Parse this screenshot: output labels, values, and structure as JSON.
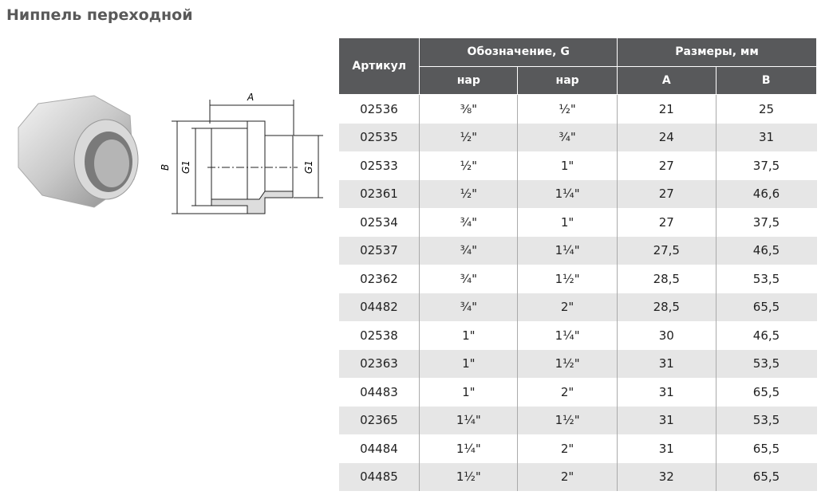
{
  "title": "Ниппель переходной",
  "drawing": {
    "label_a": "A",
    "label_b": "B",
    "label_g1": "G1"
  },
  "table": {
    "header_article": "Артикул",
    "header_designation": "Обозначение, G",
    "header_sizes": "Размеры, мм",
    "sub_headers": [
      "нар",
      "нар",
      "A",
      "B"
    ],
    "rows": [
      [
        "02536",
        "⅜\"",
        "½\"",
        "21",
        "25"
      ],
      [
        "02535",
        "½\"",
        "¾\"",
        "24",
        "31"
      ],
      [
        "02533",
        "½\"",
        "1\"",
        "27",
        "37,5"
      ],
      [
        "02361",
        "½\"",
        "1¼\"",
        "27",
        "46,6"
      ],
      [
        "02534",
        "¾\"",
        "1\"",
        "27",
        "37,5"
      ],
      [
        "02537",
        "¾\"",
        "1¼\"",
        "27,5",
        "46,5"
      ],
      [
        "02362",
        "¾\"",
        "1½\"",
        "28,5",
        "53,5"
      ],
      [
        "04482",
        "¾\"",
        "2\"",
        "28,5",
        "65,5"
      ],
      [
        "02538",
        "1\"",
        "1¼\"",
        "30",
        "46,5"
      ],
      [
        "02363",
        "1\"",
        "1½\"",
        "31",
        "53,5"
      ],
      [
        "04483",
        "1\"",
        "2\"",
        "31",
        "65,5"
      ],
      [
        "02365",
        "1¼\"",
        "1½\"",
        "31",
        "53,5"
      ],
      [
        "04484",
        "1¼\"",
        "2\"",
        "31",
        "65,5"
      ],
      [
        "04485",
        "1½\"",
        "2\"",
        "32",
        "65,5"
      ]
    ]
  }
}
